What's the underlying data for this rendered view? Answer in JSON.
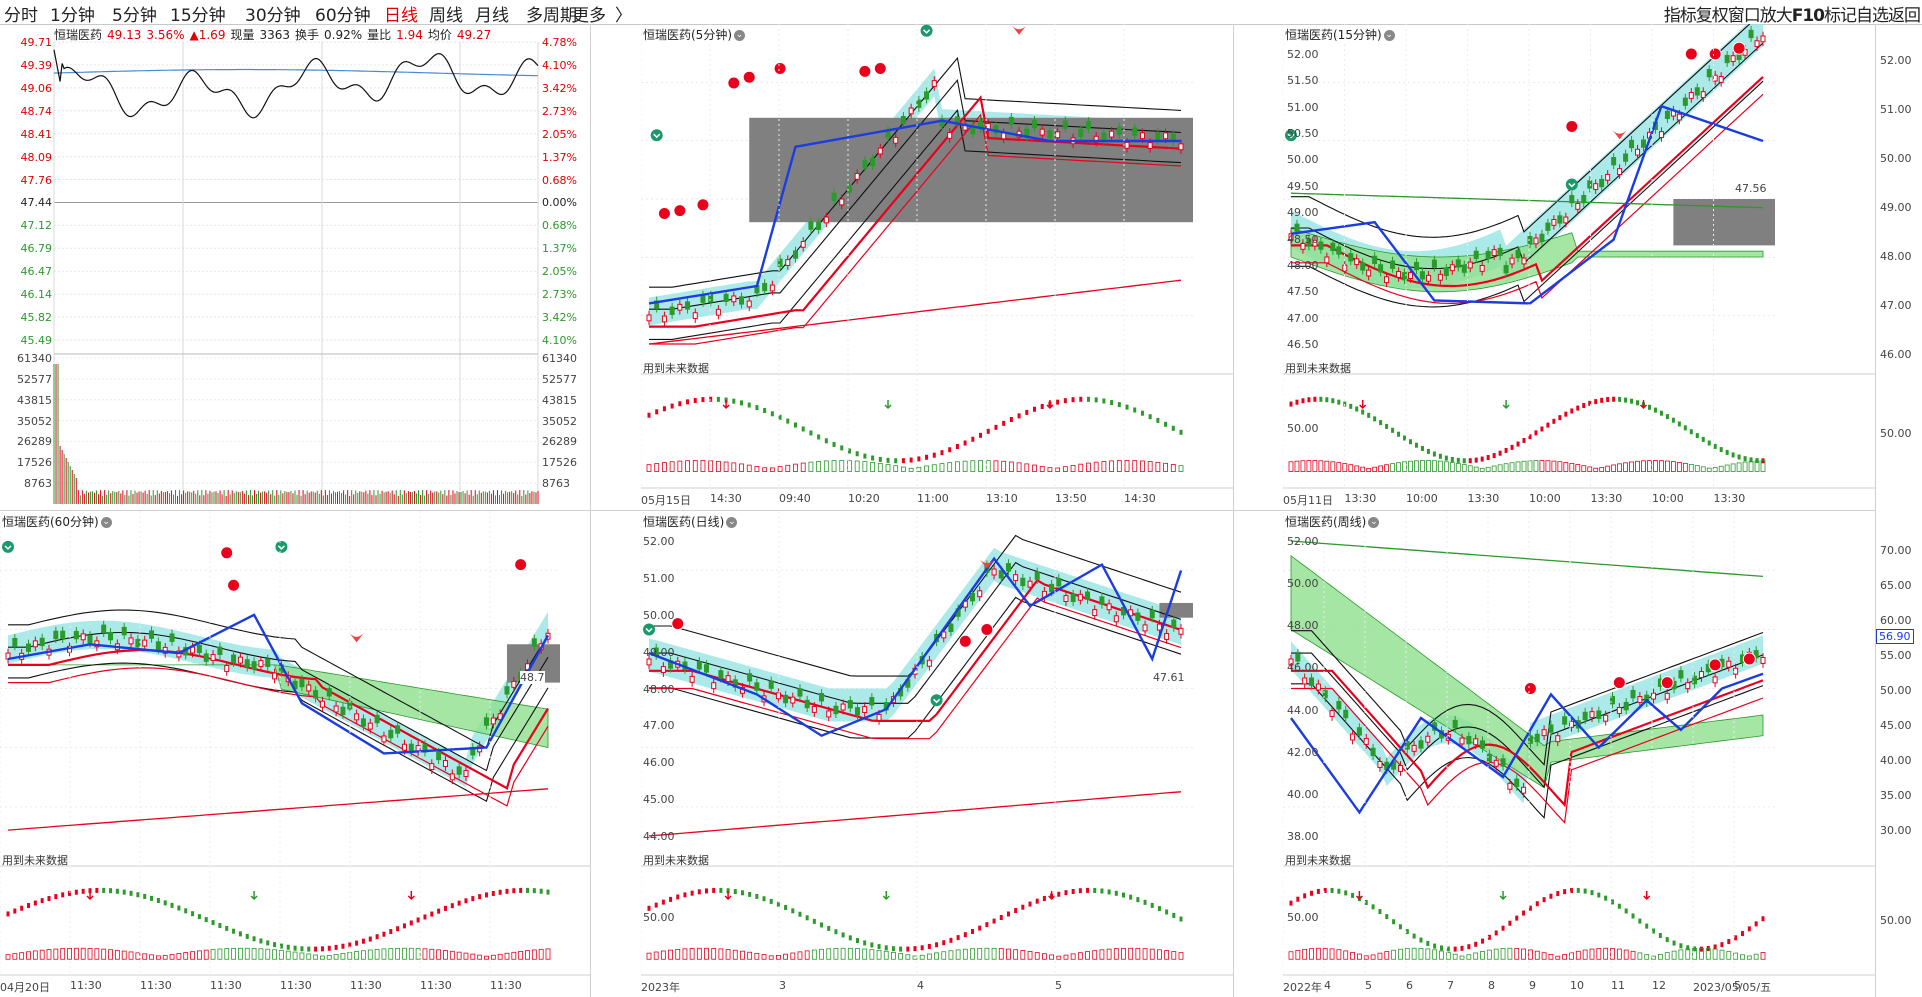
{
  "topbar": {
    "periods": [
      {
        "label": "分时",
        "active": false
      },
      {
        "label": "1分钟",
        "active": false
      },
      {
        "label": "5分钟",
        "active": false
      },
      {
        "label": "15分钟",
        "active": false
      },
      {
        "label": "30分钟",
        "active": false
      },
      {
        "label": "60分钟",
        "active": false
      },
      {
        "label": "日线",
        "active": true
      },
      {
        "label": "周线",
        "active": false
      },
      {
        "label": "月线",
        "active": false
      },
      {
        "label": "多周期",
        "active": false
      },
      {
        "label": "更多",
        "active": false
      }
    ],
    "more_arrow": "〉",
    "tools": [
      "指标",
      "复权",
      "窗口",
      "放大",
      "F10",
      "标记",
      "自选",
      "返回"
    ]
  },
  "colors": {
    "up": "#e8001c",
    "down": "#2a9a2a",
    "blue": "#1a3ce0",
    "cloud": "#9ee6e6",
    "band_green": "#8ee08e",
    "gray": "#808080",
    "grid": "#dcdcdc"
  },
  "intraday": {
    "name": "恒瑞医药",
    "price": "49.13",
    "pct": "3.56%",
    "change": "▲1.69",
    "vol_label": "现量",
    "vol": "3363",
    "turnover_label": "换手",
    "turnover": "0.92%",
    "ratio_label": "量比",
    "ratio": "1.94",
    "avg_label": "均价",
    "avg": "49.27",
    "price_left": [
      "49.71",
      "49.39",
      "49.06",
      "48.74",
      "48.41",
      "48.09",
      "47.76",
      "47.44",
      "47.12",
      "46.79",
      "46.47",
      "46.14",
      "45.82",
      "45.49"
    ],
    "pct_right": [
      "4.78%",
      "4.10%",
      "3.42%",
      "2.73%",
      "2.05%",
      "1.37%",
      "0.68%",
      "0.00%",
      "0.68%",
      "1.37%",
      "2.05%",
      "2.73%",
      "3.42%",
      "4.10%"
    ],
    "vol_left": [
      "61340",
      "52577",
      "43815",
      "35052",
      "26289",
      "17526",
      "8763"
    ],
    "vol_right": [
      "61340",
      "52577",
      "43815",
      "35052",
      "26289",
      "17526",
      "8763"
    ]
  },
  "panels": [
    {
      "title": "恒瑞医药(5分钟)",
      "note": "用到未来数据",
      "yaxis": [],
      "ind_axis": [],
      "xaxis": [
        "05月15日",
        "14:30",
        "09:40",
        "10:20",
        "11:00",
        "13:10",
        "13:50",
        "14:30"
      ]
    },
    {
      "title": "恒瑞医药(15分钟)",
      "note": "用到未来数据",
      "yaxis": [
        "52.00",
        "51.50",
        "51.00",
        "50.50",
        "50.00",
        "49.50",
        "49.00",
        "48.50",
        "48.00",
        "47.50",
        "47.00",
        "46.50"
      ],
      "ind_axis": [
        "50.00"
      ],
      "xaxis": [
        "05月11日",
        "13:30",
        "10:00",
        "13:30",
        "10:00",
        "13:30",
        "10:00",
        "13:30"
      ],
      "label_value": "47.56"
    },
    {
      "title": "恒瑞医药(60分钟)",
      "note": "用到未来数据",
      "yaxis": [],
      "ind_axis": [],
      "xaxis": [
        "04月20日",
        "11:30",
        "11:30",
        "11:30",
        "11:30",
        "11:30",
        "11:30",
        "11:30"
      ],
      "label_value": "48.7"
    },
    {
      "title": "恒瑞医药(日线)",
      "note": "用到未来数据",
      "yaxis": [
        "52.00",
        "51.00",
        "50.00",
        "49.00",
        "48.00",
        "47.00",
        "46.00",
        "45.00",
        "44.00"
      ],
      "ind_axis": [
        "50.00"
      ],
      "xaxis": [
        "2023年",
        "3",
        "4",
        "5"
      ],
      "label_value": "47.61"
    },
    {
      "title": "恒瑞医药(周线)",
      "note": "用到未来数据",
      "yaxis": [
        "52.00",
        "50.00",
        "48.00",
        "46.00",
        "44.00",
        "42.00",
        "40.00",
        "38.00"
      ],
      "ind_axis": [
        "50.00"
      ],
      "xaxis": [
        "2022年",
        "4",
        "5",
        "6",
        "7",
        "8",
        "9",
        "10",
        "11",
        "12",
        "2023/05/05/五",
        "5"
      ]
    }
  ],
  "right_axis": {
    "top": [
      "52.00",
      "51.00",
      "50.00",
      "49.00",
      "48.00",
      "47.00",
      "46.00"
    ],
    "top_ind": [
      "50.00"
    ],
    "bottom": [
      "70.00",
      "65.00",
      "60.00",
      "55.00",
      "50.00",
      "45.00",
      "40.00",
      "35.00",
      "30.00"
    ],
    "bottom_ind": [
      "50.00"
    ],
    "marker": "56.90"
  }
}
